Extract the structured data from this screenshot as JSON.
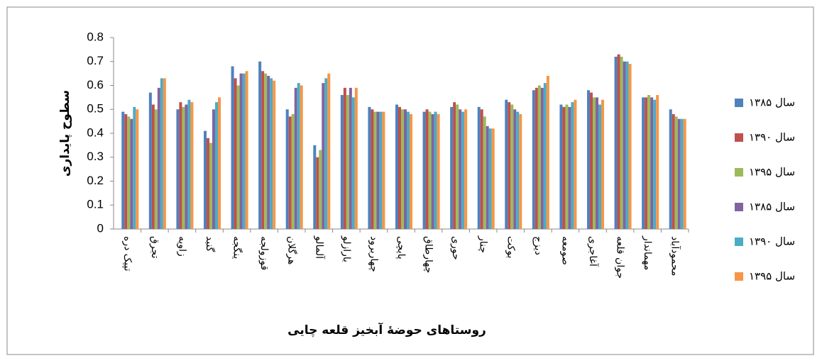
{
  "chart_data": {
    "type": "bar",
    "y_label": "سطوح پایداری",
    "x_label": "روستاهای حوضهٔ آبخیز قلعه چایی",
    "categories": [
      "تپیک دره",
      "تجرق",
      "زاویه",
      "گنبد",
      "ینگجه",
      "قوزولجه",
      "هرگلان",
      "آلمالو",
      "بارازلو",
      "چهاربرود",
      "پایچی",
      "چهارطاق",
      "حوری",
      "چنار",
      "بوکت",
      "دیزج",
      "صومعه",
      "آغاجری",
      "جوان قلعه",
      "مهماندار",
      "محمودآباد"
    ],
    "series": [
      {
        "name": "سال ۱۳۸۵",
        "color": "#4f81bd",
        "values": [
          0.49,
          0.57,
          0.5,
          0.41,
          0.68,
          0.7,
          0.5,
          0.35,
          0.56,
          0.51,
          0.52,
          0.49,
          0.51,
          0.51,
          0.54,
          0.58,
          0.52,
          0.58,
          0.72,
          0.55,
          0.5
        ]
      },
      {
        "name": "سال ۱۳۹۰",
        "color": "#c0504d",
        "values": [
          0.48,
          0.52,
          0.53,
          0.38,
          0.63,
          0.66,
          0.47,
          0.3,
          0.59,
          0.5,
          0.51,
          0.5,
          0.53,
          0.5,
          0.53,
          0.59,
          0.51,
          0.57,
          0.73,
          0.55,
          0.48
        ]
      },
      {
        "name": "سال ۱۳۹۵",
        "color": "#9bbb59",
        "values": [
          0.47,
          0.5,
          0.51,
          0.36,
          0.6,
          0.65,
          0.48,
          0.33,
          0.56,
          0.49,
          0.5,
          0.49,
          0.52,
          0.47,
          0.52,
          0.6,
          0.52,
          0.55,
          0.72,
          0.56,
          0.47
        ]
      },
      {
        "name": "سال ۱۳۸۵",
        "color": "#8064a2",
        "values": [
          0.46,
          0.59,
          0.52,
          0.5,
          0.65,
          0.64,
          0.59,
          0.61,
          0.59,
          0.49,
          0.5,
          0.48,
          0.5,
          0.43,
          0.5,
          0.59,
          0.51,
          0.55,
          0.7,
          0.55,
          0.46
        ]
      },
      {
        "name": "سال ۱۳۹۰",
        "color": "#4bacc6",
        "values": [
          0.51,
          0.63,
          0.54,
          0.53,
          0.65,
          0.63,
          0.61,
          0.63,
          0.55,
          0.49,
          0.49,
          0.49,
          0.49,
          0.42,
          0.49,
          0.61,
          0.53,
          0.52,
          0.7,
          0.54,
          0.46
        ]
      },
      {
        "name": "سال ۱۳۹۵",
        "color": "#f79646",
        "values": [
          0.5,
          0.63,
          0.53,
          0.55,
          0.66,
          0.62,
          0.6,
          0.65,
          0.59,
          0.49,
          0.48,
          0.48,
          0.5,
          0.42,
          0.48,
          0.64,
          0.54,
          0.54,
          0.69,
          0.56,
          0.46
        ]
      }
    ],
    "ylim": [
      0,
      0.8
    ],
    "yticks": [
      0,
      0.1,
      0.2,
      0.3,
      0.4,
      0.5,
      0.6,
      0.7,
      0.8
    ]
  }
}
